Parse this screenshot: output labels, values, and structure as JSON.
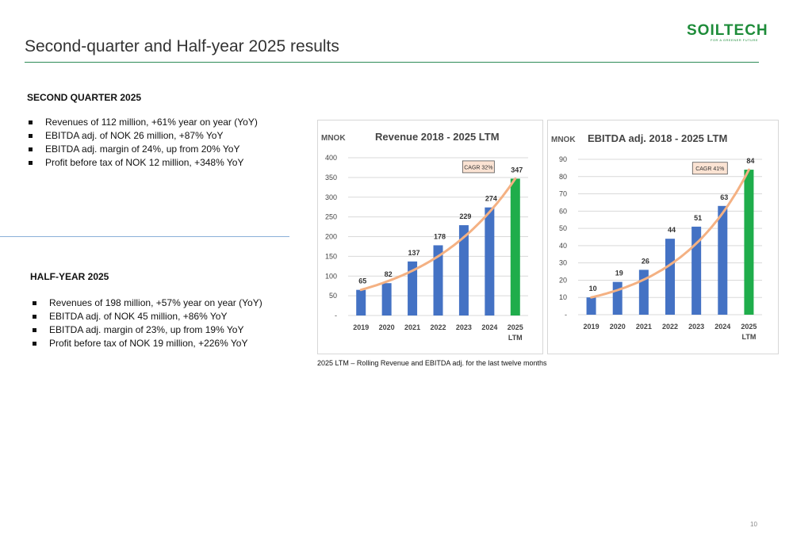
{
  "page": {
    "title": "Second-quarter and Half-year 2025 results",
    "page_number": "10",
    "footnote": "2025 LTM – Rolling Revenue and EBITDA adj. for the last twelve months"
  },
  "logo": {
    "word": "SOILTECH",
    "tagline": "FOR A GREENER FUTURE"
  },
  "q2": {
    "heading": "SECOND QUARTER 2025",
    "bullets": [
      "Revenues of 112 million, +61% year on year (YoY)",
      "EBITDA adj. of NOK 26 million, +87% YoY",
      "EBITDA adj. margin of 24%, up from 20% YoY",
      "Profit before tax of NOK 12 million, +348% YoY"
    ]
  },
  "h1": {
    "heading": "HALF-YEAR 2025",
    "bullets": [
      "Revenues of 198 million, +57% year on year (YoY)",
      "EBITDA adj. of NOK 45 million, +86% YoY",
      "EBITDA adj. margin of 23%, up from 19% YoY",
      "Profit before tax of NOK 19 million, +226% YoY"
    ]
  },
  "colors": {
    "bar": "#4472c4",
    "highlight": "#1fad4b",
    "trend": "#f4b183",
    "brand": "#1e8c3a"
  },
  "chart_data": [
    {
      "type": "bar",
      "title": "Revenue 2018 - 2025 LTM",
      "unit_label": "MNOK",
      "categories": [
        "2019",
        "2020",
        "2021",
        "2022",
        "2023",
        "2024",
        "2025 LTM"
      ],
      "values": [
        65,
        82,
        137,
        178,
        229,
        274,
        347
      ],
      "ylim": [
        0,
        400
      ],
      "ticks": [
        0,
        50,
        100,
        150,
        200,
        250,
        300,
        350,
        400
      ],
      "tick_labels": [
        "-",
        "50",
        "100",
        "150",
        "200",
        "250",
        "300",
        "350",
        "400"
      ],
      "annotation": "CAGR 32%",
      "trendline": true,
      "highlight_last": true,
      "grid": true
    },
    {
      "type": "bar",
      "title": "EBITDA adj. 2018  - 2025 LTM",
      "unit_label": "MNOK",
      "categories": [
        "2019",
        "2020",
        "2021",
        "2022",
        "2023",
        "2024",
        "2025 LTM"
      ],
      "values": [
        10,
        19,
        26,
        44,
        51,
        63,
        84
      ],
      "ylim": [
        0,
        90
      ],
      "ticks": [
        0,
        10,
        20,
        30,
        40,
        50,
        60,
        70,
        80,
        90
      ],
      "tick_labels": [
        "-",
        "10",
        "20",
        "30",
        "40",
        "50",
        "60",
        "70",
        "80",
        "90"
      ],
      "annotation": "CAGR 41%",
      "trendline": true,
      "highlight_last": true,
      "grid": true
    }
  ]
}
